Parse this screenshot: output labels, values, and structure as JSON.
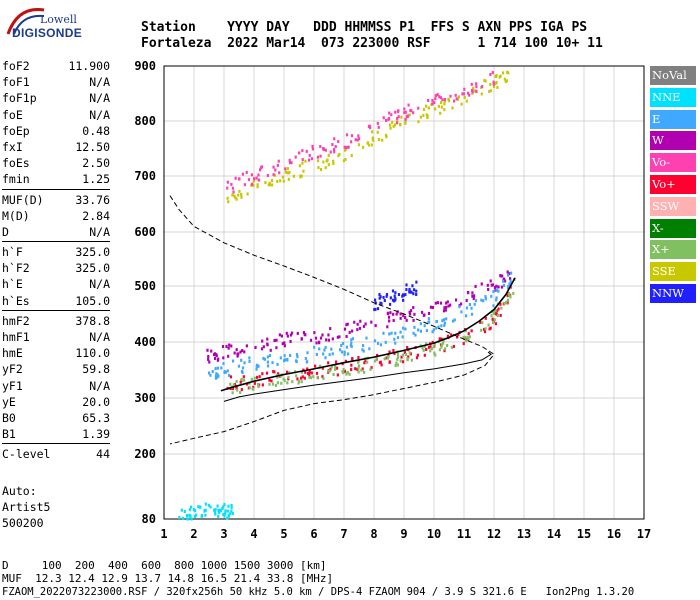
{
  "logo": {
    "line1": "Lowell",
    "line2": "DIGISONDE"
  },
  "header": {
    "line1": "Station    YYYY DAY   DDD HHMMSS P1  FFS S AXN PPS IGA PS",
    "line2": "Fortaleza  2022 Mar14  073 223000 RSF      1 714 100 10+ 11"
  },
  "params_group1": [
    {
      "name": "foF2",
      "value": "11.900"
    },
    {
      "name": "foF1",
      "value": "N/A"
    },
    {
      "name": "foF1p",
      "value": "N/A"
    },
    {
      "name": "foE",
      "value": "N/A"
    },
    {
      "name": "foEp",
      "value": "0.48"
    },
    {
      "name": "fxI",
      "value": "12.50"
    },
    {
      "name": "foEs",
      "value": "2.50"
    },
    {
      "name": "fmin",
      "value": "1.25"
    }
  ],
  "params_group2": [
    {
      "name": "MUF(D)",
      "value": "33.76"
    },
    {
      "name": "M(D)",
      "value": "2.84"
    },
    {
      "name": "D",
      "value": "N/A"
    }
  ],
  "params_group3": [
    {
      "name": "h`F",
      "value": "325.0"
    },
    {
      "name": "h`F2",
      "value": "325.0"
    },
    {
      "name": "h`E",
      "value": "N/A"
    },
    {
      "name": "h`Es",
      "value": "105.0"
    }
  ],
  "params_group4": [
    {
      "name": "hmF2",
      "value": "378.8"
    },
    {
      "name": "hmF1",
      "value": "N/A"
    },
    {
      "name": "hmE",
      "value": "110.0"
    },
    {
      "name": "yF2",
      "value": "59.8"
    },
    {
      "name": "yF1",
      "value": "N/A"
    },
    {
      "name": "yE",
      "value": "20.0"
    },
    {
      "name": "B0",
      "value": "65.3"
    },
    {
      "name": "B1",
      "value": "1.39"
    }
  ],
  "params_group5": [
    {
      "name": "C-level",
      "value": "44"
    }
  ],
  "auto": {
    "line1": "Auto:",
    "line2": "Artist5",
    "line3": "500200"
  },
  "legend": [
    {
      "label": "NoVal",
      "color": "#808080"
    },
    {
      "label": "NNE",
      "color": "#00e0ff"
    },
    {
      "label": "E",
      "color": "#40a8ff"
    },
    {
      "label": "W",
      "color": "#b000b0"
    },
    {
      "label": "Vo-",
      "color": "#ff40b0"
    },
    {
      "label": "Vo+",
      "color": "#ff0030"
    },
    {
      "label": "SSW",
      "color": "#ffb0b0"
    },
    {
      "label": "X-",
      "color": "#008000"
    },
    {
      "label": "X+",
      "color": "#80c060"
    },
    {
      "label": "SSE",
      "color": "#c8c800"
    },
    {
      "label": "NNW",
      "color": "#2020ff"
    }
  ],
  "bottom": {
    "dist_line": "D     100  200  400  600  800 1000 1500 3000 [km]",
    "muf_line": "MUF  12.3 12.4 12.9 13.7 14.8 16.5 21.4 33.8 [MHz]",
    "file_line": "FZAOM_2022073223000.RSF / 320fx256h 50 kHz 5.0 km / DPS-4 FZAOM 904 / 3.9 S 321.6 E   Ion2Png 1.3.20"
  },
  "chart_data": {
    "type": "scatter",
    "xlim": [
      1,
      17
    ],
    "ylim": [
      80,
      900
    ],
    "x_ticks": [
      "1",
      "2",
      "3",
      "4",
      "5",
      "6",
      "7",
      "8",
      "9",
      "10",
      "11",
      "12",
      "13",
      "14",
      "15",
      "16",
      "17"
    ],
    "y_ticks": [
      "80",
      "200",
      "300",
      "400",
      "500",
      "600",
      "700",
      "800",
      "900"
    ],
    "grid": true,
    "profile_dashed": [
      [
        1.2,
        665
      ],
      [
        1.5,
        640
      ],
      [
        2,
        610
      ],
      [
        3,
        580
      ],
      [
        4,
        557
      ],
      [
        5,
        537
      ],
      [
        6,
        516
      ],
      [
        7,
        494
      ],
      [
        8,
        470
      ],
      [
        9,
        450
      ],
      [
        10,
        428
      ],
      [
        11,
        405
      ],
      [
        11.6,
        392
      ],
      [
        12,
        378
      ],
      [
        11.7,
        358
      ],
      [
        11,
        341
      ],
      [
        10,
        328
      ],
      [
        9,
        317
      ],
      [
        8,
        306
      ],
      [
        7,
        297
      ],
      [
        6,
        290
      ],
      [
        5,
        278
      ],
      [
        4,
        258
      ],
      [
        3,
        240
      ],
      [
        2,
        228
      ],
      [
        1.2,
        218
      ]
    ],
    "trace_black": [
      [
        2.9,
        313
      ],
      [
        3.2,
        318
      ],
      [
        4,
        330
      ],
      [
        5,
        342
      ],
      [
        6,
        352
      ],
      [
        7,
        363
      ],
      [
        8,
        373
      ],
      [
        9,
        385
      ],
      [
        10,
        398
      ],
      [
        10.5,
        408
      ],
      [
        11,
        420
      ],
      [
        11.5,
        437
      ],
      [
        12,
        458
      ],
      [
        12.4,
        485
      ],
      [
        12.7,
        515
      ]
    ],
    "profile_solid": [
      [
        3,
        294
      ],
      [
        3.5,
        302
      ],
      [
        4,
        307
      ],
      [
        5,
        315
      ],
      [
        6,
        323
      ],
      [
        7,
        330
      ],
      [
        8,
        337
      ],
      [
        9,
        345
      ],
      [
        10,
        352
      ],
      [
        11,
        361
      ],
      [
        11.6,
        368
      ],
      [
        11.9,
        378
      ],
      [
        11.8,
        382
      ]
    ],
    "echo_bands": [
      {
        "color": "#b000b0",
        "points": [
          [
            2.4,
            375
          ],
          [
            3,
            380
          ],
          [
            4,
            392
          ],
          [
            5,
            402
          ],
          [
            6,
            410
          ],
          [
            7,
            420
          ],
          [
            8,
            432
          ],
          [
            9,
            446
          ],
          [
            10,
            462
          ],
          [
            11,
            480
          ],
          [
            12,
            500
          ],
          [
            12.6,
            520
          ]
        ]
      },
      {
        "color": "#40a8ff",
        "points": [
          [
            2.5,
            345
          ],
          [
            3,
            352
          ],
          [
            4,
            360
          ],
          [
            5,
            368
          ],
          [
            6,
            378
          ],
          [
            7,
            390
          ],
          [
            8,
            400
          ],
          [
            9,
            415
          ],
          [
            10,
            432
          ],
          [
            11,
            455
          ],
          [
            12,
            478
          ],
          [
            12.7,
            525
          ]
        ]
      },
      {
        "color": "#ff0030",
        "points": [
          [
            3,
            325
          ],
          [
            4,
            330
          ],
          [
            5,
            338
          ],
          [
            6,
            348
          ],
          [
            7,
            355
          ],
          [
            8,
            365
          ],
          [
            9,
            378
          ],
          [
            10,
            390
          ],
          [
            11,
            410
          ],
          [
            12,
            440
          ],
          [
            12.6,
            490
          ]
        ]
      },
      {
        "color": "#80c060",
        "points": [
          [
            3.2,
            320
          ],
          [
            4,
            326
          ],
          [
            5,
            335
          ],
          [
            6,
            344
          ],
          [
            7,
            352
          ],
          [
            8,
            362
          ],
          [
            9,
            374
          ],
          [
            10,
            388
          ],
          [
            11,
            408
          ],
          [
            12,
            445
          ],
          [
            12.7,
            505
          ]
        ]
      },
      {
        "color": "#2020ff",
        "points": [
          [
            8,
            470
          ],
          [
            8.5,
            478
          ],
          [
            9,
            488
          ],
          [
            9.5,
            496
          ]
        ]
      },
      {
        "color": "#c8c800",
        "points": [
          [
            3,
            660
          ],
          [
            4,
            680
          ],
          [
            5,
            700
          ],
          [
            6,
            720
          ],
          [
            7,
            740
          ],
          [
            8,
            770
          ],
          [
            9,
            800
          ],
          [
            10,
            820
          ],
          [
            11,
            845
          ],
          [
            12,
            870
          ],
          [
            12.5,
            880
          ]
        ]
      },
      {
        "color": "#ff40b0",
        "points": [
          [
            3,
            675
          ],
          [
            4,
            700
          ],
          [
            5,
            720
          ],
          [
            6,
            745
          ],
          [
            7,
            760
          ],
          [
            8,
            790
          ],
          [
            9,
            815
          ],
          [
            10,
            835
          ],
          [
            11,
            855
          ],
          [
            12,
            880
          ]
        ]
      },
      {
        "color": "#00e0ff",
        "points": [
          [
            1.5,
            88
          ],
          [
            2,
            92
          ],
          [
            2.5,
            96
          ],
          [
            3,
            95
          ],
          [
            3.3,
            92
          ]
        ]
      }
    ]
  }
}
